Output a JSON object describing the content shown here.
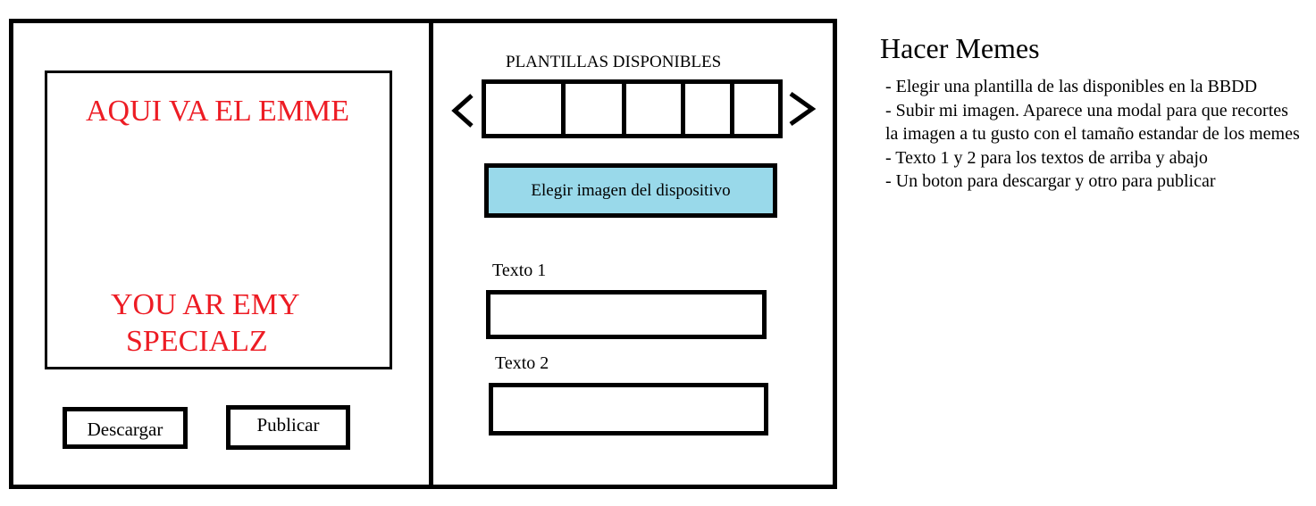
{
  "editor": {
    "meme": {
      "top_text": "AQUI VA EL EMME",
      "bottom_text_line1": "YOU AR EMY",
      "bottom_text_line2": "SPECIALZ",
      "text_color": "#ed1c24"
    },
    "actions": {
      "download_label": "Descargar",
      "publish_label": "Publicar"
    }
  },
  "templates": {
    "title": "PLANTILLAS DISPONIBLES",
    "prev_icon": "chevron-left-icon",
    "next_icon": "chevron-right-icon",
    "slot_count": 5
  },
  "upload": {
    "label": "Elegir imagen del dispositivo",
    "color": "#99d9ea"
  },
  "fields": {
    "text1_label": "Texto 1",
    "text1_value": "",
    "text2_label": "Texto 2",
    "text2_value": ""
  },
  "notes": {
    "title": "Hacer Memes",
    "items": [
      "- Elegir una plantilla de las disponibles en la BBDD",
      "- Subir mi imagen. Aparece una modal para que recortes la imagen a tu gusto con el tamaño estandar de los memes",
      "- Texto 1 y 2 para los textos de arriba y abajo",
      "- Un boton para descargar y otro para publicar"
    ]
  }
}
